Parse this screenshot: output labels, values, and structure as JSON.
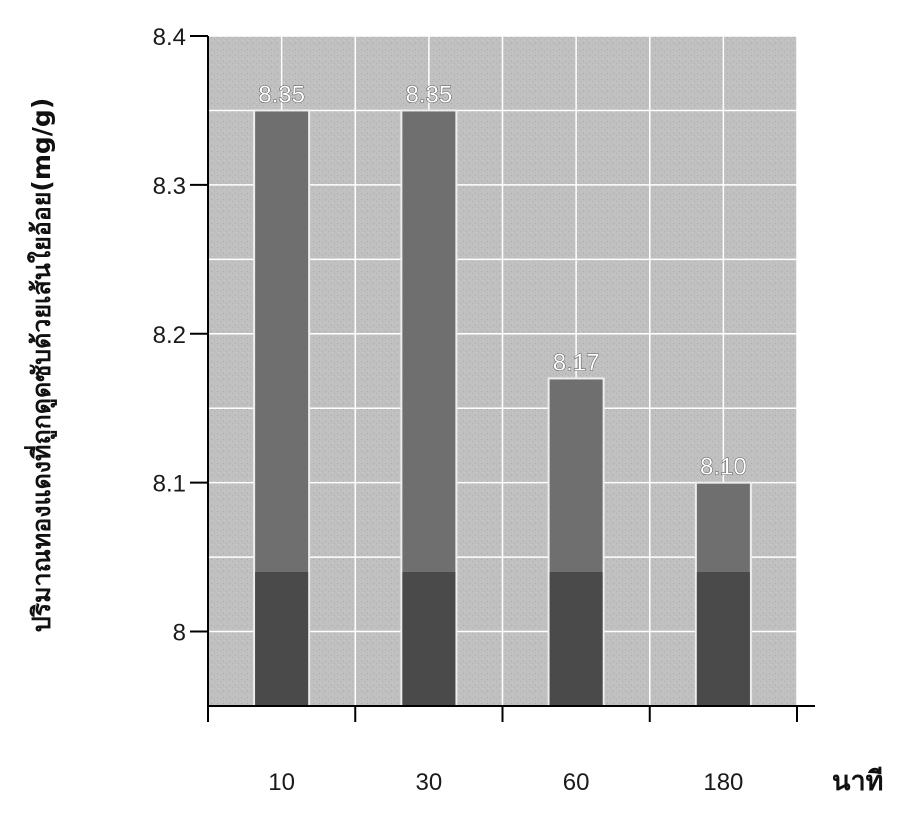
{
  "chart_data": {
    "type": "bar",
    "title": "",
    "xlabel": "นาที",
    "ylabel": "ปริมาณทองแดงที่ถูกดูดซับด้วยเส้นใยอ้อย(mg/g)",
    "categories": [
      "10",
      "30",
      "60",
      "180"
    ],
    "values": [
      8.35,
      8.35,
      8.17,
      8.1
    ],
    "data_labels": [
      "8.35",
      "8.35",
      "8.17",
      "8.10"
    ],
    "ylim": [
      7.95,
      8.4
    ],
    "yticks": [
      {
        "value": 8.4,
        "label": "8.4"
      },
      {
        "value": 8.3,
        "label": "8.3"
      },
      {
        "value": 8.2,
        "label": "8.2"
      },
      {
        "value": 8.1,
        "label": "8.1"
      },
      {
        "value": 8.0,
        "label": "8"
      }
    ],
    "grid": true,
    "legend": "none",
    "colors": {
      "plot_background": "#bdbdbd",
      "bar_top": "#6f6f6f",
      "bar_bottom": "#4a4a4a",
      "gridline": "#ffffff",
      "axis": "#000000"
    }
  }
}
